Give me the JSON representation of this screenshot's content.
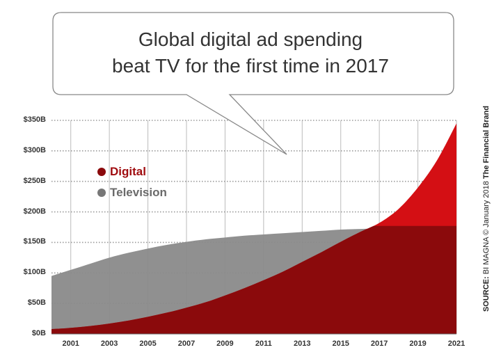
{
  "callout": {
    "line1": "Global digital ad spending",
    "line2": "beat TV for the first time in 2017"
  },
  "source": {
    "label": "SOURCE:",
    "provider": "BI MAGNA",
    "copyright": "© January 2018",
    "brand": "The Financial Brand"
  },
  "colors": {
    "digital": "#8b0a0c",
    "digital_light": "#d40f14",
    "television": "#8a8a8a",
    "grid": "#bbbbbb",
    "callout_border": "#888888"
  },
  "chart_data": {
    "type": "area",
    "title": "Global digital ad spending beat TV for the first time in 2017",
    "xlabel": "",
    "ylabel": "",
    "x": [
      2000,
      2001,
      2002,
      2003,
      2004,
      2005,
      2006,
      2007,
      2008,
      2009,
      2010,
      2011,
      2012,
      2013,
      2014,
      2015,
      2016,
      2017,
      2018,
      2019,
      2020,
      2021
    ],
    "x_tick_labels": [
      "2001",
      "2003",
      "2005",
      "2007",
      "2009",
      "2011",
      "2013",
      "2015",
      "2017",
      "2019",
      "2021"
    ],
    "y_tick_labels": [
      "$0B",
      "$50B",
      "$100B",
      "$150B",
      "$200B",
      "$250B",
      "$300B",
      "$350B"
    ],
    "ylim": [
      0,
      350
    ],
    "grid": true,
    "legend_position": "upper-left",
    "series": [
      {
        "name": "Digital",
        "values": [
          8,
          10,
          13,
          17,
          22,
          28,
          35,
          43,
          52,
          63,
          75,
          88,
          102,
          118,
          134,
          151,
          167,
          182,
          205,
          240,
          285,
          345
        ]
      },
      {
        "name": "Television",
        "values": [
          95,
          105,
          115,
          125,
          133,
          140,
          146,
          151,
          155,
          158,
          161,
          163,
          165,
          167,
          169,
          171,
          172,
          173,
          174,
          175,
          176,
          177
        ]
      }
    ]
  }
}
